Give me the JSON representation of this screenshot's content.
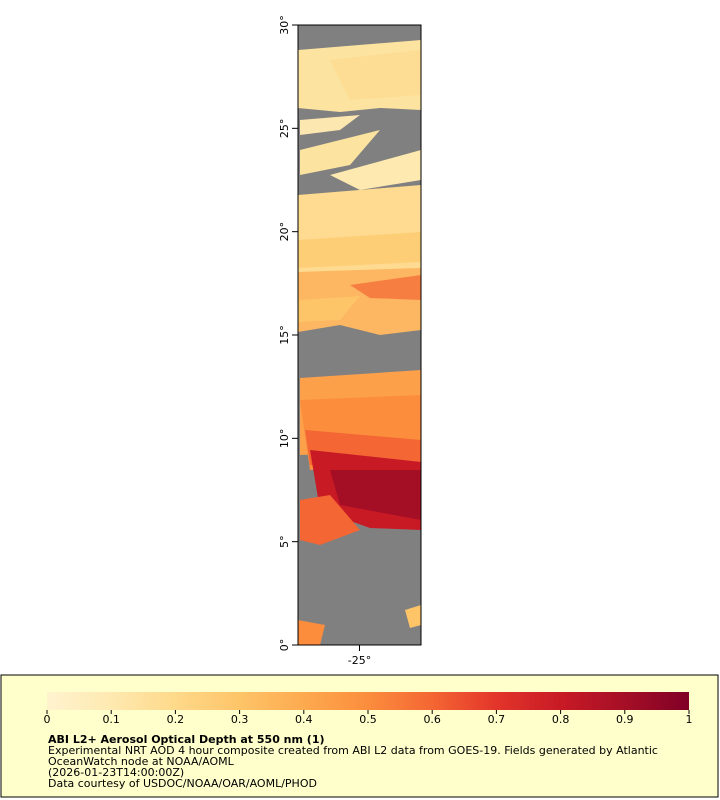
{
  "map": {
    "xlim": [
      -28,
      -22
    ],
    "ylim": [
      0,
      30
    ],
    "xticks": [
      {
        "value": -25,
        "label": "-25°"
      }
    ],
    "yticks": [
      {
        "value": 0,
        "label": "0°"
      },
      {
        "value": 5,
        "label": "5°"
      },
      {
        "value": 10,
        "label": "10°"
      },
      {
        "value": 15,
        "label": "15°"
      },
      {
        "value": 20,
        "label": "20°"
      },
      {
        "value": 25,
        "label": "25°"
      },
      {
        "value": 30,
        "label": "30°"
      }
    ]
  },
  "colorbar": {
    "lim": [
      0,
      1
    ],
    "ticks": [
      0,
      0.1,
      0.2,
      0.3,
      0.4,
      0.5,
      0.6,
      0.7,
      0.8,
      0.9,
      1
    ],
    "colors": [
      "#fff3cf",
      "#fee9b0",
      "#fed98a",
      "#fec468",
      "#fdaa4f",
      "#fb8d3d",
      "#f46633",
      "#e3352a",
      "#c81a25",
      "#a50f26",
      "#800026"
    ]
  },
  "legend": {
    "title": "ABI L2+ Aerosol Optical Depth at 550 nm (1)",
    "lines": [
      "Experimental NRT AOD 4 hour composite created from ABI L2 data from GOES-19. Fields generated by Atlantic",
      "OceanWatch node at NOAA/AOML",
      "(2026-01-23T14:00:00Z)",
      "Data courtesy of USDOC/NOAA/OAR/AOML/PHOD"
    ]
  }
}
